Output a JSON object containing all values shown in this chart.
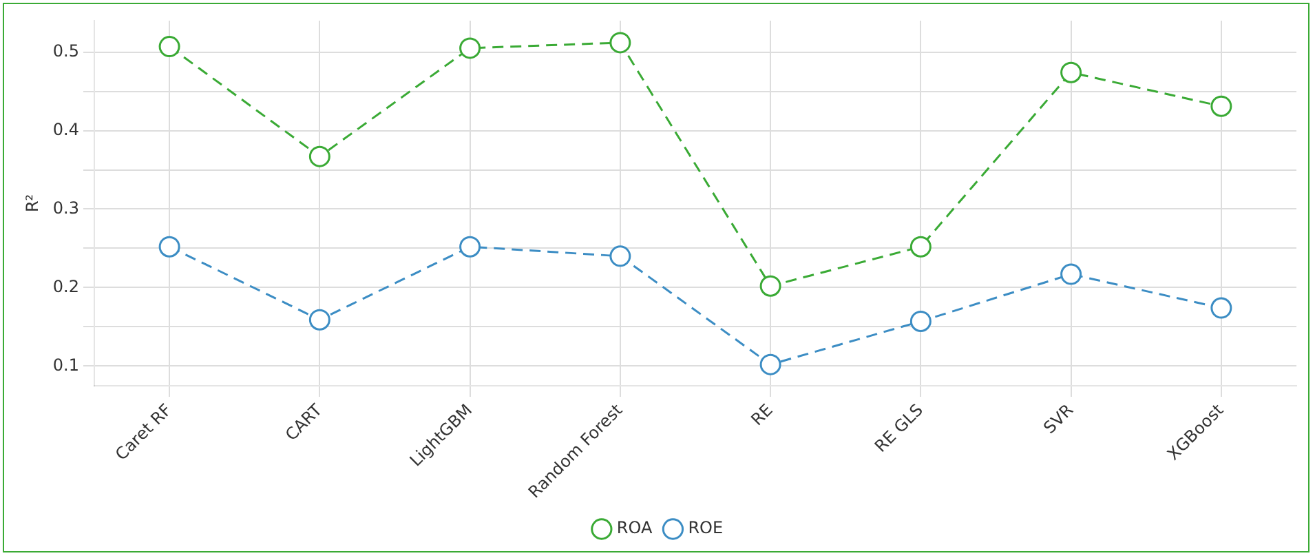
{
  "chart_data": {
    "type": "line",
    "ylabel": "R²",
    "categories": [
      "Caret RF",
      "CART",
      "LightGBM",
      "Random Forest",
      "RE",
      "RE GLS",
      "SVR",
      "XGBoost"
    ],
    "series": [
      {
        "name": "ROA",
        "color": "#3aaa35",
        "values": [
          0.507,
          0.367,
          0.505,
          0.512,
          0.202,
          0.252,
          0.474,
          0.431
        ]
      },
      {
        "name": "ROE",
        "color": "#3c8dc4",
        "values": [
          0.252,
          0.159,
          0.252,
          0.24,
          0.102,
          0.157,
          0.217,
          0.174
        ]
      }
    ],
    "ylim": [
      0.075,
      0.54
    ],
    "yticks": [
      0.1,
      {
        "value": 0.15,
        "label": null
      },
      0.2,
      {
        "value": 0.25,
        "label": null
      },
      0.3,
      {
        "value": 0.35,
        "label": null
      },
      0.4,
      {
        "value": 0.45,
        "label": null
      },
      0.5
    ],
    "grid": true,
    "legend": "bottom",
    "marker": "circle",
    "line_style": "dashed"
  }
}
